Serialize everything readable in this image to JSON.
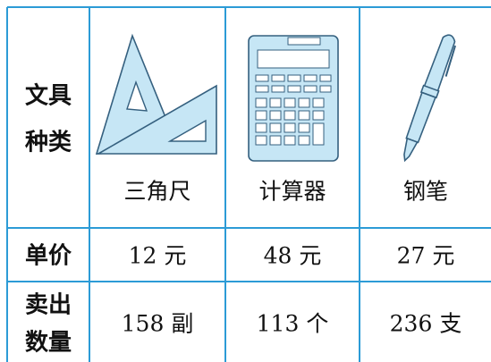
{
  "table": {
    "header": {
      "label": [
        "文具",
        "种类"
      ],
      "items": [
        "三角尺",
        "计算器",
        "钢笔"
      ]
    },
    "rows": [
      {
        "label": [
          "单价"
        ],
        "cells": [
          "12 元",
          "48 元",
          "27 元"
        ]
      },
      {
        "label": [
          "卖出",
          "数量"
        ],
        "cells": [
          "158 副",
          "113 个",
          "236 支"
        ]
      }
    ]
  }
}
